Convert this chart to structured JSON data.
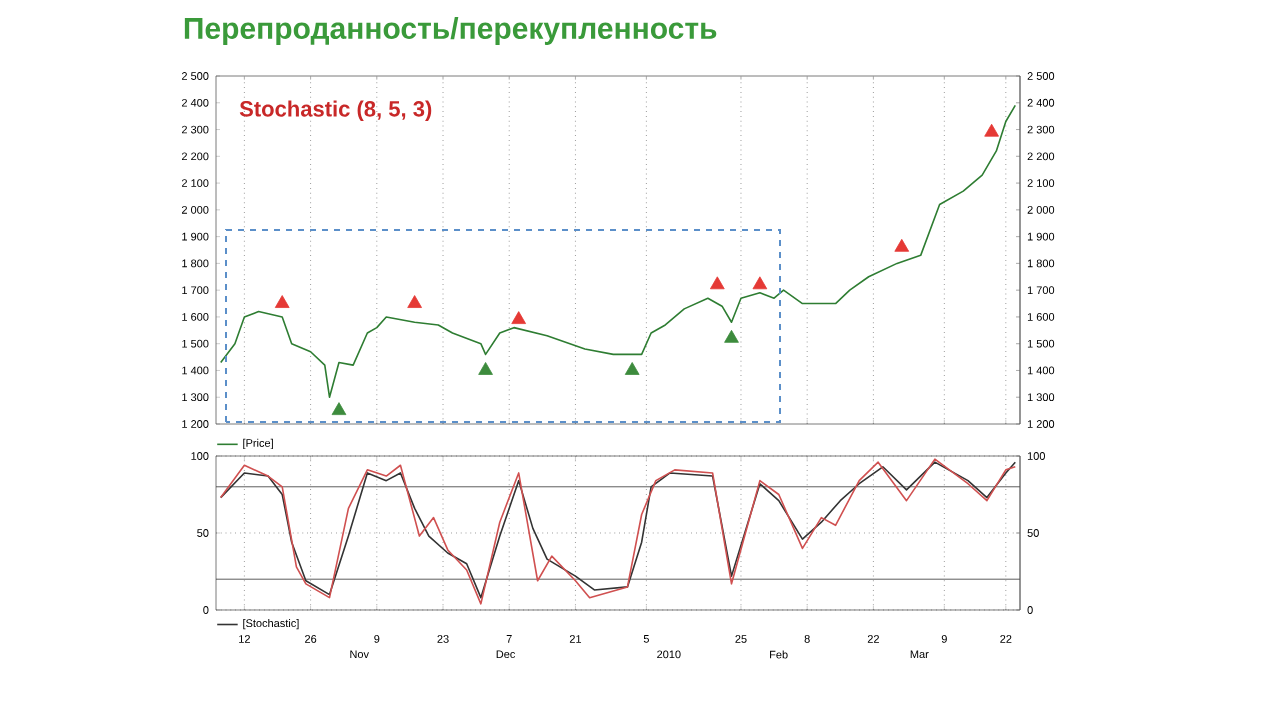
{
  "chart_data": [
    {
      "type": "line",
      "title": "Перепроданность/перекупленность",
      "annotations": [
        "Stochastic (8, 5, 3)"
      ],
      "xlim": [
        "2009-10-06",
        "2010-03-25"
      ],
      "xticks": [
        {
          "value": "2009-10-12",
          "label": null
        },
        {
          "value": "2009-10-26",
          "label": null
        },
        {
          "value": "2009-11-09",
          "label": null
        },
        {
          "value": "2009-11-23",
          "label": null
        },
        {
          "value": "2009-12-07",
          "label": null
        },
        {
          "value": "2009-12-21",
          "label": null
        },
        {
          "value": "2010-01-05",
          "label": null
        },
        {
          "value": "2010-01-25",
          "label": null
        },
        {
          "value": "2010-02-08",
          "label": null
        },
        {
          "value": "2010-02-22",
          "label": null
        },
        {
          "value": "2010-03-09",
          "label": null
        },
        {
          "value": "2010-03-22",
          "label": null
        }
      ],
      "ylim": [
        1200,
        2500
      ],
      "yticks": [
        {
          "value": 1200,
          "label": "1 200"
        },
        {
          "value": 1300,
          "label": "1 300"
        },
        {
          "value": 1400,
          "label": "1 400"
        },
        {
          "value": 1500,
          "label": "1 500"
        },
        {
          "value": 1600,
          "label": "1 600"
        },
        {
          "value": 1700,
          "label": "1 700"
        },
        {
          "value": 1800,
          "label": "1 800"
        },
        {
          "value": 1900,
          "label": "1 900"
        },
        {
          "value": 2000,
          "label": "2 000"
        },
        {
          "value": 2100,
          "label": "2 100"
        },
        {
          "value": 2200,
          "label": "2 200"
        },
        {
          "value": 2300,
          "label": "2 300"
        },
        {
          "value": 2400,
          "label": "2 400"
        },
        {
          "value": 2500,
          "label": "2 500"
        }
      ],
      "y2lim": [
        1200,
        2500
      ],
      "y2ticks": [
        {
          "value": 1200,
          "label": "1 200"
        },
        {
          "value": 1300,
          "label": "1 300"
        },
        {
          "value": 1400,
          "label": "1 400"
        },
        {
          "value": 1500,
          "label": "1 500"
        },
        {
          "value": 1600,
          "label": "1 600"
        },
        {
          "value": 1700,
          "label": "1 700"
        },
        {
          "value": 1800,
          "label": "1 800"
        },
        {
          "value": 1900,
          "label": "1 900"
        },
        {
          "value": 2000,
          "label": "2 000"
        },
        {
          "value": 2100,
          "label": "2 100"
        },
        {
          "value": 2200,
          "label": "2 200"
        },
        {
          "value": 2300,
          "label": "2 300"
        },
        {
          "value": 2400,
          "label": "2 400"
        },
        {
          "value": 2500,
          "label": "2 500"
        }
      ],
      "tick_labels": "y",
      "grid": "x",
      "legend": "bottom left",
      "marker": "none",
      "line_style": "solid",
      "series": [
        {
          "name": "[Price]",
          "color": "#2e7d32",
          "x": [
            "2009-10-07",
            "2009-10-10",
            "2009-10-12",
            "2009-10-15",
            "2009-10-20",
            "2009-10-22",
            "2009-10-26",
            "2009-10-29",
            "2009-10-30",
            "2009-11-01",
            "2009-11-04",
            "2009-11-07",
            "2009-11-09",
            "2009-11-11",
            "2009-11-17",
            "2009-11-22",
            "2009-11-25",
            "2009-12-01",
            "2009-12-02",
            "2009-12-05",
            "2009-12-08",
            "2009-12-15",
            "2009-12-23",
            "2009-12-29",
            "2010-01-04",
            "2010-01-06",
            "2010-01-09",
            "2010-01-13",
            "2010-01-18",
            "2010-01-21",
            "2010-01-23",
            "2010-01-25",
            "2010-01-29",
            "2010-02-01",
            "2010-02-03",
            "2010-02-07",
            "2010-02-14",
            "2010-02-17",
            "2010-02-21",
            "2010-02-27",
            "2010-03-04",
            "2010-03-08",
            "2010-03-13",
            "2010-03-17",
            "2010-03-20",
            "2010-03-22",
            "2010-03-24"
          ],
          "values": [
            1430,
            1500,
            1600,
            1620,
            1600,
            1500,
            1470,
            1420,
            1300,
            1430,
            1420,
            1540,
            1560,
            1600,
            1580,
            1570,
            1540,
            1500,
            1460,
            1540,
            1560,
            1530,
            1480,
            1460,
            1460,
            1540,
            1570,
            1630,
            1670,
            1640,
            1580,
            1670,
            1690,
            1670,
            1700,
            1650,
            1650,
            1700,
            1750,
            1800,
            1830,
            2020,
            2070,
            2130,
            2220,
            2330,
            2390
          ]
        },
        {
          "type": "scatter",
          "marker": "triangle",
          "color": "#e53935",
          "x": [
            "2009-10-20",
            "2009-11-17",
            "2009-12-09",
            "2010-01-20",
            "2010-01-29",
            "2010-02-28",
            "2010-03-19"
          ],
          "values": [
            1650,
            1650,
            1590,
            1720,
            1720,
            1860,
            2290
          ]
        },
        {
          "type": "scatter",
          "marker": "triangle",
          "color": "#3d8b3d",
          "x": [
            "2009-11-01",
            "2009-12-02",
            "2010-01-02",
            "2010-01-23"
          ],
          "values": [
            1250,
            1400,
            1400,
            1520
          ]
        }
      ]
    },
    {
      "type": "line",
      "xlim": [
        "2009-10-06",
        "2010-03-25"
      ],
      "xticks": [
        {
          "value": "2009-10-12",
          "label": "12"
        },
        {
          "value": "2009-10-26",
          "label": "26"
        },
        {
          "value": "2009-11-09",
          "label": "9"
        },
        {
          "value": "2009-11-23",
          "label": "23"
        },
        {
          "value": "2009-12-07",
          "label": "7"
        },
        {
          "value": "2009-12-21",
          "label": "21"
        },
        {
          "value": "2010-01-05",
          "label": "5"
        },
        {
          "value": "2010-01-25",
          "label": "25"
        },
        {
          "value": "2010-02-08",
          "label": "8"
        },
        {
          "value": "2010-02-22",
          "label": "22"
        },
        {
          "value": "2010-03-09",
          "label": "9"
        },
        {
          "value": "2010-03-22",
          "label": "22"
        }
      ],
      "annotations": [
        "Nov",
        "Dec",
        "2010",
        "Feb",
        "Mar"
      ],
      "ylim": [
        0,
        100
      ],
      "yticks": [
        0,
        50,
        100
      ],
      "y2lim": [
        0,
        100
      ],
      "y2ticks": [
        0,
        50,
        100
      ],
      "grid": true,
      "legend": "bottom left",
      "marker": "none",
      "line_style": "solid",
      "ref_lines": [
        {
          "axis": "y",
          "value": 20,
          "color": "#333333"
        },
        {
          "axis": "y",
          "value": 80,
          "color": "#333333"
        }
      ],
      "series": [
        {
          "name": "[Stochastic]",
          "color": "#333333",
          "x": [
            "2009-10-07",
            "2009-10-12",
            "2009-10-17",
            "2009-10-20",
            "2009-10-22",
            "2009-10-25",
            "2009-10-30",
            "2009-11-03",
            "2009-11-07",
            "2009-11-11",
            "2009-11-14",
            "2009-11-17",
            "2009-11-20",
            "2009-11-24",
            "2009-11-28",
            "2009-12-01",
            "2009-12-05",
            "2009-12-09",
            "2009-12-12",
            "2009-12-15",
            "2009-12-21",
            "2009-12-25",
            "2010-01-01",
            "2010-01-04",
            "2010-01-06",
            "2010-01-10",
            "2010-01-19",
            "2010-01-23",
            "2010-01-29",
            "2010-02-02",
            "2010-02-07",
            "2010-02-11",
            "2010-02-15",
            "2010-02-19",
            "2010-02-24",
            "2010-03-01",
            "2010-03-07",
            "2010-03-14",
            "2010-03-18",
            "2010-03-22",
            "2010-03-24"
          ],
          "values": [
            73,
            89,
            87,
            75,
            44,
            19,
            10,
            48,
            89,
            84,
            89,
            66,
            48,
            37,
            30,
            8,
            48,
            84,
            53,
            33,
            22,
            13,
            15,
            44,
            80,
            89,
            87,
            22,
            82,
            71,
            46,
            57,
            71,
            82,
            93,
            78,
            96,
            84,
            73,
            89,
            96
          ]
        },
        {
          "color": "#d05050",
          "x": [
            "2009-10-07",
            "2009-10-12",
            "2009-10-17",
            "2009-10-20",
            "2009-10-23",
            "2009-10-25",
            "2009-10-30",
            "2009-11-03",
            "2009-11-07",
            "2009-11-11",
            "2009-11-14",
            "2009-11-18",
            "2009-11-21",
            "2009-11-24",
            "2009-11-28",
            "2009-12-01",
            "2009-12-05",
            "2009-12-09",
            "2009-12-13",
            "2009-12-16",
            "2009-12-21",
            "2009-12-24",
            "2010-01-01",
            "2010-01-04",
            "2010-01-07",
            "2010-01-11",
            "2010-01-19",
            "2010-01-23",
            "2010-01-29",
            "2010-02-02",
            "2010-02-07",
            "2010-02-11",
            "2010-02-14",
            "2010-02-19",
            "2010-02-23",
            "2010-03-01",
            "2010-03-07",
            "2010-03-14",
            "2010-03-18",
            "2010-03-22",
            "2010-03-24"
          ],
          "values": [
            73,
            94,
            87,
            80,
            28,
            17,
            8,
            66,
            91,
            87,
            94,
            48,
            60,
            39,
            26,
            4,
            57,
            89,
            19,
            35,
            19,
            8,
            15,
            62,
            84,
            91,
            89,
            17,
            84,
            75,
            40,
            60,
            55,
            84,
            96,
            71,
            98,
            82,
            71,
            91,
            93
          ]
        }
      ]
    }
  ]
}
